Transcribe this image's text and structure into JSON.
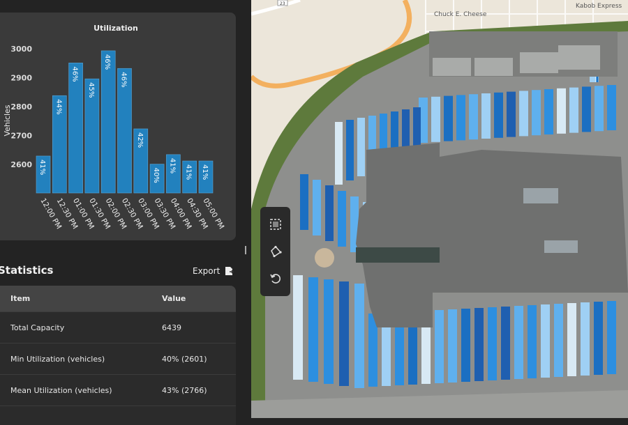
{
  "chart_data": {
    "type": "bar",
    "title": "Utilization",
    "xlabel": "",
    "ylabel": "Vehicles",
    "ylim": [
      2500,
      3020
    ],
    "yticks": [
      2600,
      2700,
      2800,
      2900,
      3000
    ],
    "categories": [
      "12:00 PM",
      "12:30 PM",
      "01:00 PM",
      "01:30 PM",
      "02:00 PM",
      "02:30 PM",
      "03:00 PM",
      "03:30 PM",
      "04:00 PM",
      "04:30 PM",
      "05:00 PM"
    ],
    "values": [
      2629,
      2838,
      2951,
      2896,
      2993,
      2932,
      2723,
      2601,
      2634,
      2612,
      2612
    ],
    "labels": [
      "41%",
      "44%",
      "46%",
      "45%",
      "46%",
      "46%",
      "42%",
      "40%",
      "41%",
      "41%",
      "41%"
    ],
    "color": "#2281be"
  },
  "statistics": {
    "title": "Statistics",
    "export_label": "Export",
    "headers": [
      "Item",
      "Value"
    ],
    "rows": [
      [
        "Total Capacity",
        "6439"
      ],
      [
        "Min Utilization (vehicles)",
        "40% (2601)"
      ],
      [
        "Mean Utilization (vehicles)",
        "43% (2766)"
      ]
    ]
  },
  "map": {
    "labels": [
      "Chuck E. Cheese",
      "Kabob Express",
      "23"
    ]
  }
}
